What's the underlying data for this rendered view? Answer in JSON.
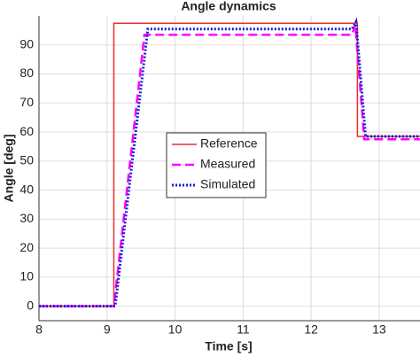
{
  "chart_data": {
    "type": "line",
    "title": "Angle dynamics",
    "x_label": "Time [s]",
    "y_label": "Angle [deg]",
    "xlim": [
      8,
      13.6
    ],
    "ylim": [
      -5,
      100
    ],
    "xticks": [
      8,
      9,
      10,
      11,
      12,
      13
    ],
    "yticks": [
      0,
      10,
      20,
      30,
      40,
      50,
      60,
      70,
      80,
      90
    ],
    "grid": true,
    "legend_position": "center",
    "series": [
      {
        "name": "Reference",
        "color": "#e8302a",
        "style": "solid",
        "x": [
          8,
          9.1,
          9.1,
          12.68,
          12.68,
          13.6
        ],
        "values": [
          0,
          0,
          97.5,
          97.5,
          58.5,
          58.5
        ]
      },
      {
        "name": "Measured",
        "color": "#ff00ff",
        "style": "dashed",
        "x": [
          8,
          9.1,
          9.55,
          12.6,
          12.65,
          12.78,
          13.6
        ],
        "values": [
          0,
          0,
          93.5,
          93.5,
          97,
          57.5,
          57.5
        ]
      },
      {
        "name": "Simulated",
        "color": "#1c1cd8",
        "style": "dotted",
        "x": [
          8,
          9.12,
          9.6,
          12.6,
          12.66,
          12.8,
          13.6
        ],
        "values": [
          0,
          0,
          95.5,
          95.5,
          98,
          58.5,
          58.5
        ]
      }
    ]
  }
}
